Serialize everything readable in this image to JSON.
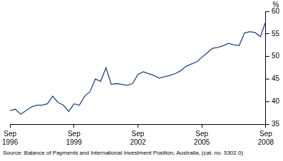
{
  "chart_data": {
    "type": "line",
    "y_label": "%",
    "source": "Source: Balance of Payments and International Investment Position, Australia, (cat. no. 5302.0)",
    "categories": [
      "Sep 1996",
      null,
      null,
      null,
      null,
      null,
      null,
      null,
      null,
      null,
      null,
      null,
      "Sep 1999",
      null,
      null,
      null,
      null,
      null,
      null,
      null,
      null,
      null,
      null,
      null,
      "Sep 2002",
      null,
      null,
      null,
      null,
      null,
      null,
      null,
      null,
      null,
      null,
      null,
      "Sep 2005",
      null,
      null,
      null,
      null,
      null,
      null,
      null,
      null,
      null,
      null,
      null,
      "Sep 2008"
    ],
    "values": [
      38,
      38.3,
      37.2,
      38,
      38.8,
      39.2,
      39.2,
      39.5,
      41.2,
      39.8,
      39.2,
      37.8,
      39.5,
      39.2,
      41.2,
      42.2,
      45,
      44.5,
      47.5,
      43.8,
      44,
      43.8,
      43.6,
      44,
      46,
      46.6,
      46.2,
      45.8,
      45.2,
      45.5,
      45.8,
      46.2,
      46.8,
      47.8,
      48.3,
      48.8,
      49.8,
      50.8,
      51.8,
      52,
      52.4,
      52.9,
      52.6,
      52.4,
      55.2,
      55.5,
      55.3,
      54.4,
      57.8
    ],
    "color": "#23457a",
    "ylim": [
      35,
      60
    ],
    "yticks": [
      35,
      40,
      45,
      50,
      55,
      60
    ],
    "grid": false
  }
}
